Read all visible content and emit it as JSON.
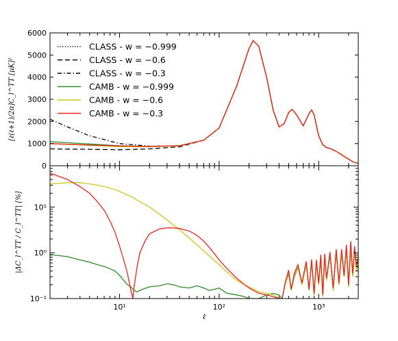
{
  "chart_data": [
    {
      "type": "line",
      "title": "",
      "xlabel": "",
      "ylabel": "[ℓ(ℓ+1)/2π]C_l^TT [μK]²",
      "xscale": "log",
      "xlim": [
        2,
        2500
      ],
      "ylim": [
        0,
        6000
      ],
      "yticks": [
        "0",
        "1000",
        "2000",
        "3000",
        "4000",
        "5000",
        "6000"
      ],
      "legend_position": "top-left",
      "series": [
        {
          "name": "CLASS - w = −0.999",
          "style": "dotted",
          "color": "#000000",
          "x": [
            2,
            3,
            5,
            10,
            20,
            40,
            70,
            100,
            150,
            200,
            220,
            250,
            300,
            350,
            400,
            450,
            500,
            540,
            600,
            700,
            800,
            850,
            900,
            1000,
            1100,
            1200,
            1300,
            1500,
            1800,
            2200,
            2500
          ],
          "y": [
            1000,
            970,
            940,
            880,
            860,
            900,
            1150,
            1700,
            3600,
            5300,
            5650,
            5400,
            4000,
            2500,
            1750,
            1900,
            2400,
            2550,
            2300,
            1800,
            2350,
            2520,
            2300,
            1350,
            950,
            820,
            780,
            650,
            420,
            180,
            100
          ]
        },
        {
          "name": "CLASS - w = −0.6",
          "style": "dashed",
          "color": "#000000",
          "x": [
            2,
            3,
            5,
            10,
            20,
            40,
            70,
            100,
            150,
            200,
            220,
            250,
            300,
            350,
            400,
            450,
            500,
            540,
            600,
            700,
            800,
            850,
            900,
            1000,
            1100,
            1200,
            1300,
            1500,
            1800,
            2200,
            2500
          ],
          "y": [
            760,
            750,
            740,
            720,
            760,
            850,
            1150,
            1700,
            3600,
            5300,
            5650,
            5400,
            4000,
            2500,
            1750,
            1900,
            2400,
            2550,
            2300,
            1800,
            2350,
            2520,
            2300,
            1350,
            950,
            820,
            780,
            650,
            420,
            180,
            100
          ]
        },
        {
          "name": "CLASS - w = −0.3",
          "style": "dashdot",
          "color": "#000000",
          "x": [
            2,
            3,
            5,
            10,
            20,
            40,
            70,
            100,
            150,
            200,
            220,
            250,
            300,
            350,
            400,
            450,
            500,
            540,
            600,
            700,
            800,
            850,
            900,
            1000,
            1100,
            1200,
            1300,
            1500,
            1800,
            2200,
            2500
          ],
          "y": [
            2100,
            1750,
            1350,
            1000,
            880,
            900,
            1150,
            1700,
            3600,
            5300,
            5650,
            5400,
            4000,
            2500,
            1750,
            1900,
            2400,
            2550,
            2300,
            1800,
            2350,
            2520,
            2300,
            1350,
            950,
            820,
            780,
            650,
            420,
            180,
            100
          ]
        },
        {
          "name": "CAMB - w = −0.999",
          "style": "solid",
          "color": "#2b8a2b",
          "x": [
            2,
            3,
            5,
            10,
            20,
            40,
            70,
            100,
            150,
            200,
            220,
            250,
            300,
            350,
            400,
            450,
            500,
            540,
            600,
            700,
            800,
            850,
            900,
            1000,
            1100,
            1200,
            1300,
            1500,
            1800,
            2200,
            2500
          ],
          "y": [
            1090,
            1040,
            980,
            900,
            870,
            900,
            1150,
            1700,
            3600,
            5300,
            5650,
            5400,
            4000,
            2500,
            1750,
            1900,
            2400,
            2550,
            2300,
            1800,
            2350,
            2520,
            2300,
            1350,
            950,
            820,
            780,
            650,
            420,
            180,
            100
          ]
        },
        {
          "name": "CAMB - w = −0.6",
          "style": "solid",
          "color": "#c8c81e",
          "x": [
            2,
            3,
            5,
            10,
            20,
            40,
            70,
            100,
            150,
            200,
            220,
            250,
            300,
            350,
            400,
            450,
            500,
            540,
            600,
            700,
            800,
            850,
            900,
            1000,
            1100,
            1200,
            1300,
            1500,
            1800,
            2200,
            2500
          ],
          "y": [
            1000,
            960,
            920,
            860,
            850,
            890,
            1150,
            1700,
            3600,
            5300,
            5650,
            5400,
            4000,
            2500,
            1750,
            1900,
            2400,
            2550,
            2300,
            1800,
            2350,
            2520,
            2300,
            1350,
            950,
            820,
            780,
            650,
            420,
            180,
            100
          ]
        },
        {
          "name": "CAMB - w = −0.3",
          "style": "solid",
          "color": "#e8231e",
          "x": [
            2,
            3,
            5,
            10,
            20,
            40,
            70,
            100,
            150,
            200,
            220,
            250,
            300,
            350,
            400,
            450,
            500,
            540,
            600,
            700,
            800,
            850,
            900,
            1000,
            1100,
            1200,
            1300,
            1500,
            1800,
            2200,
            2500
          ],
          "y": [
            1000,
            970,
            930,
            890,
            870,
            900,
            1150,
            1700,
            3600,
            5300,
            5650,
            5400,
            4000,
            2500,
            1750,
            1900,
            2400,
            2550,
            2300,
            1800,
            2350,
            2520,
            2300,
            1350,
            950,
            820,
            780,
            650,
            420,
            180,
            100
          ]
        }
      ]
    },
    {
      "type": "line",
      "title": "",
      "xlabel": "ℓ",
      "ylabel": "|ΔC_l^TT / C_l^TT| [%]",
      "xscale": "log",
      "yscale": "log",
      "xlim": [
        2,
        2500
      ],
      "ylim": [
        0.1,
        80
      ],
      "xticks": [
        "10¹",
        "10²",
        "10³"
      ],
      "yticks": [
        "10⁻¹",
        "10⁰",
        "10¹"
      ],
      "series": [
        {
          "name": "w = −0.999",
          "color": "#2b8a2b",
          "x": [
            2,
            3,
            4,
            5,
            6,
            7,
            8,
            9,
            10,
            11,
            12,
            13,
            14,
            15,
            17,
            20,
            25,
            30,
            35,
            40,
            50,
            60,
            70,
            80,
            90,
            100,
            120,
            150,
            180,
            200,
            250,
            300,
            350,
            400,
            430,
            460,
            500,
            530,
            570,
            620,
            680,
            750,
            800,
            850,
            900,
            950,
            1000,
            1050,
            1100,
            1150,
            1200,
            1300,
            1400,
            1500,
            1600,
            1700,
            1800,
            1900,
            2000,
            2100,
            2200,
            2300,
            2400,
            2500
          ],
          "y": [
            0.92,
            0.82,
            0.7,
            0.62,
            0.55,
            0.5,
            0.45,
            0.4,
            0.32,
            0.25,
            0.2,
            0.18,
            0.15,
            0.14,
            0.16,
            0.18,
            0.19,
            0.21,
            0.2,
            0.18,
            0.17,
            0.19,
            0.17,
            0.15,
            0.16,
            0.17,
            0.13,
            0.12,
            0.11,
            0.1,
            0.1,
            0.12,
            0.13,
            0.12,
            0.1,
            0.2,
            0.35,
            0.15,
            0.3,
            0.48,
            0.2,
            0.55,
            0.15,
            0.62,
            0.12,
            0.6,
            0.2,
            0.75,
            0.11,
            0.8,
            0.25,
            0.9,
            0.15,
            1.0,
            0.2,
            1.0,
            0.3,
            1.2,
            0.18,
            1.3,
            0.3,
            1.1,
            0.4,
            0.55
          ]
        },
        {
          "name": "w = −0.6",
          "color": "#c8c81e",
          "x": [
            2,
            3,
            4,
            5,
            6,
            8,
            10,
            13,
            16,
            20,
            25,
            30,
            40,
            50,
            60,
            70,
            80,
            100,
            120,
            150,
            180,
            200,
            250,
            300,
            350,
            400,
            430,
            460,
            500,
            530,
            570,
            620,
            680,
            750,
            800,
            850,
            900,
            950,
            1000,
            1050,
            1100,
            1150,
            1200,
            1300,
            1400,
            1500,
            1600,
            1700,
            1800,
            1900,
            2000,
            2100,
            2200,
            2300,
            2400,
            2500
          ],
          "y": [
            32,
            34,
            34,
            32,
            30,
            26,
            22,
            17,
            13,
            10,
            7,
            5.2,
            3.2,
            2.1,
            1.5,
            1.1,
            0.85,
            0.55,
            0.38,
            0.25,
            0.2,
            0.18,
            0.14,
            0.13,
            0.12,
            0.1,
            0.1,
            0.2,
            0.38,
            0.15,
            0.32,
            0.5,
            0.2,
            0.58,
            0.15,
            0.65,
            0.12,
            0.62,
            0.2,
            0.8,
            0.11,
            0.85,
            0.25,
            0.95,
            0.15,
            1.05,
            0.2,
            1.05,
            0.3,
            1.25,
            0.18,
            1.4,
            0.3,
            1.15,
            0.4,
            0.6
          ]
        },
        {
          "name": "w = −0.3",
          "color": "#e8231e",
          "x": [
            2,
            3,
            4,
            5,
            6,
            7,
            8,
            9,
            10,
            11,
            12,
            13,
            13.6,
            14,
            15,
            16,
            18,
            20,
            25,
            30,
            35,
            40,
            50,
            60,
            70,
            80,
            90,
            100,
            120,
            150,
            180,
            200,
            250,
            300,
            350,
            400,
            430,
            460,
            500,
            530,
            570,
            620,
            680,
            750,
            800,
            850,
            900,
            950,
            1000,
            1050,
            1100,
            1150,
            1200,
            1300,
            1400,
            1500,
            1600,
            1700,
            1800,
            1900,
            2000,
            2100,
            2200,
            2300,
            2400,
            2500
          ],
          "y": [
            55,
            40,
            28,
            20,
            13,
            8.5,
            5,
            2.8,
            1.4,
            0.7,
            0.35,
            0.15,
            0.1,
            0.18,
            0.5,
            1.0,
            1.8,
            2.6,
            3.3,
            3.5,
            3.5,
            3.4,
            3.0,
            2.4,
            1.8,
            1.3,
            0.95,
            0.7,
            0.45,
            0.28,
            0.2,
            0.17,
            0.13,
            0.12,
            0.11,
            0.1,
            0.1,
            0.22,
            0.42,
            0.16,
            0.36,
            0.55,
            0.22,
            0.65,
            0.16,
            0.72,
            0.13,
            0.7,
            0.22,
            0.9,
            0.12,
            0.95,
            0.28,
            1.05,
            0.17,
            1.2,
            0.22,
            1.2,
            0.32,
            1.5,
            0.2,
            1.8,
            0.35,
            1.4,
            0.5,
            0.8
          ]
        }
      ]
    }
  ]
}
